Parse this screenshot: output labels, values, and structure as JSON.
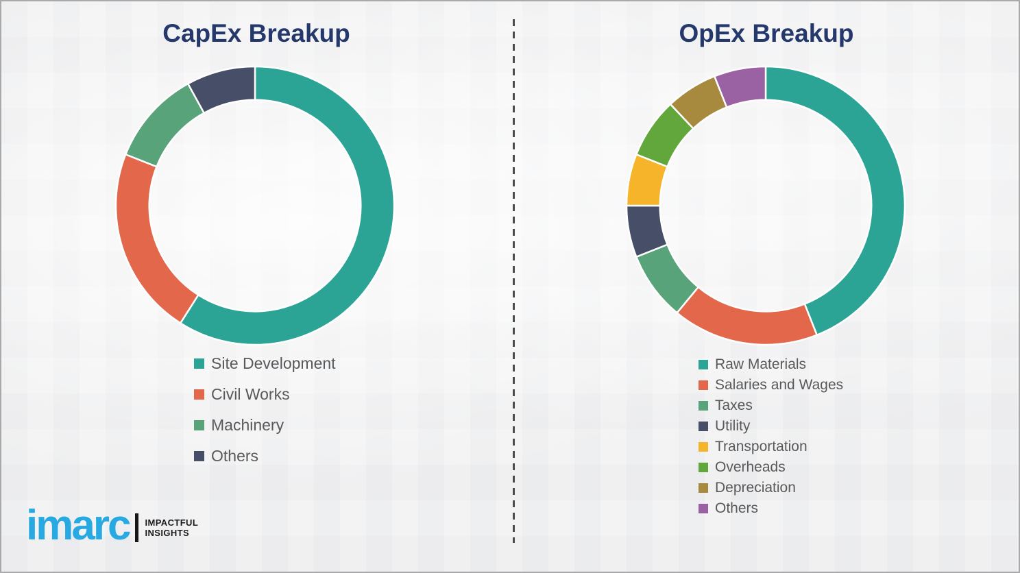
{
  "slide": {
    "background_color": "#f2f2f3",
    "divider_style": "vertical-dashed",
    "title_color": "#24386b",
    "legend_text_color": "#595959"
  },
  "chart_data": [
    {
      "type": "pie",
      "subtype": "donut",
      "title": "CapEx Breakup",
      "labels": [
        "Site Development",
        "Civil Works",
        "Machinery",
        "Others"
      ],
      "values": [
        59,
        22,
        11,
        8
      ],
      "unit": "percent (estimated from arc angles; no data labels shown)",
      "colors": [
        "#2ba496",
        "#e2674b",
        "#58a37a",
        "#474f68"
      ],
      "start_angle_deg": 0,
      "direction": "clockwise",
      "inner_radius_ratio": 0.76,
      "legend_position": "below-left",
      "data_labels_shown": false
    },
    {
      "type": "pie",
      "subtype": "donut",
      "title": "OpEx Breakup",
      "labels": [
        "Raw Materials",
        "Salaries and Wages",
        "Taxes",
        "Utility",
        "Transportation",
        "Overheads",
        "Depreciation",
        "Others"
      ],
      "values": [
        44,
        17,
        8,
        6,
        6,
        7,
        6,
        6
      ],
      "unit": "percent (estimated from arc angles; no data labels shown)",
      "colors": [
        "#2ba496",
        "#e2674b",
        "#58a37a",
        "#474f68",
        "#f6b42a",
        "#61a73b",
        "#a88a3e",
        "#9a62a3"
      ],
      "start_angle_deg": 0,
      "direction": "clockwise",
      "inner_radius_ratio": 0.76,
      "legend_position": "below-left",
      "data_labels_shown": false
    }
  ],
  "logo": {
    "brand": "imarc",
    "tagline_line1": "IMPACTFUL",
    "tagline_line2": "INSIGHTS",
    "brand_color": "#29a9e2"
  }
}
